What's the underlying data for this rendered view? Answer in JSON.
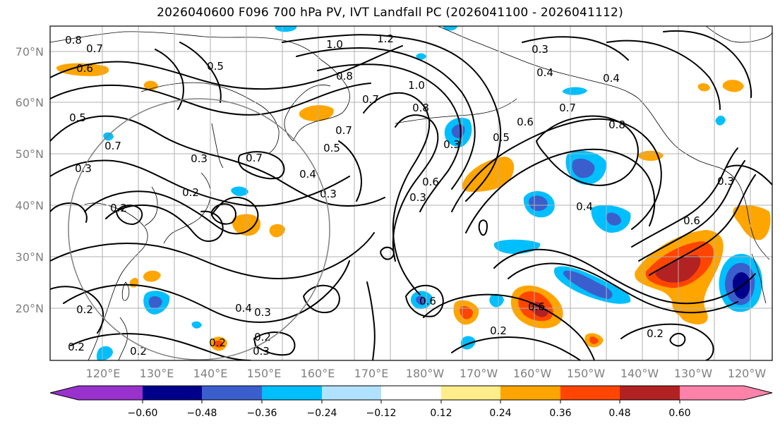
{
  "title": "2026040600 F096 700 hPa PV, IVT Landfall PC (2026041100 - 2026041112)",
  "lat_labels": [
    "70°N",
    "60°N",
    "50°N",
    "40°N",
    "30°N",
    "20°N"
  ],
  "lon_labels": [
    "120°E",
    "130°E",
    "140°E",
    "150°E",
    "160°E",
    "170°E",
    "180°W",
    "170°W",
    "160°W",
    "150°W",
    "140°W",
    "130°W",
    "120°W"
  ],
  "colorbar": {
    "ticks": [
      "−0.60",
      "−0.48",
      "−0.36",
      "−0.24",
      "−0.12",
      "0.12",
      "0.24",
      "0.36",
      "0.48",
      "0.60"
    ],
    "colors": [
      "#9932cc",
      "#00008b",
      "#3a5fcd",
      "#00bfff",
      "#b0e2ff",
      "#ffffff",
      "#ffec8b",
      "#ffa500",
      "#ff4500",
      "#b22222",
      "#ff82ab"
    ]
  },
  "contour_labels": [
    "0.8",
    "0.7",
    "0.6",
    "0.5",
    "1.0",
    "1.2",
    "0.8",
    "1.0",
    "0.7",
    "0.8",
    "0.3",
    "0.4",
    "0.4",
    "0.7",
    "0.8",
    "0.6",
    "0.5",
    "0.3",
    "0.7",
    "0.5",
    "0.3",
    "0.7",
    "0.3",
    "0.4",
    "0.3",
    "0.6",
    "0.4",
    "0.2",
    "0.2",
    "0.6",
    "0.3",
    "0.6",
    "0.2",
    "0.2",
    "0.4",
    "0.3",
    "0.2",
    "0.3",
    "0.2",
    "0.2",
    "0.2",
    "0.5",
    "0.7",
    "0.3",
    "0.6",
    "0.2"
  ]
}
